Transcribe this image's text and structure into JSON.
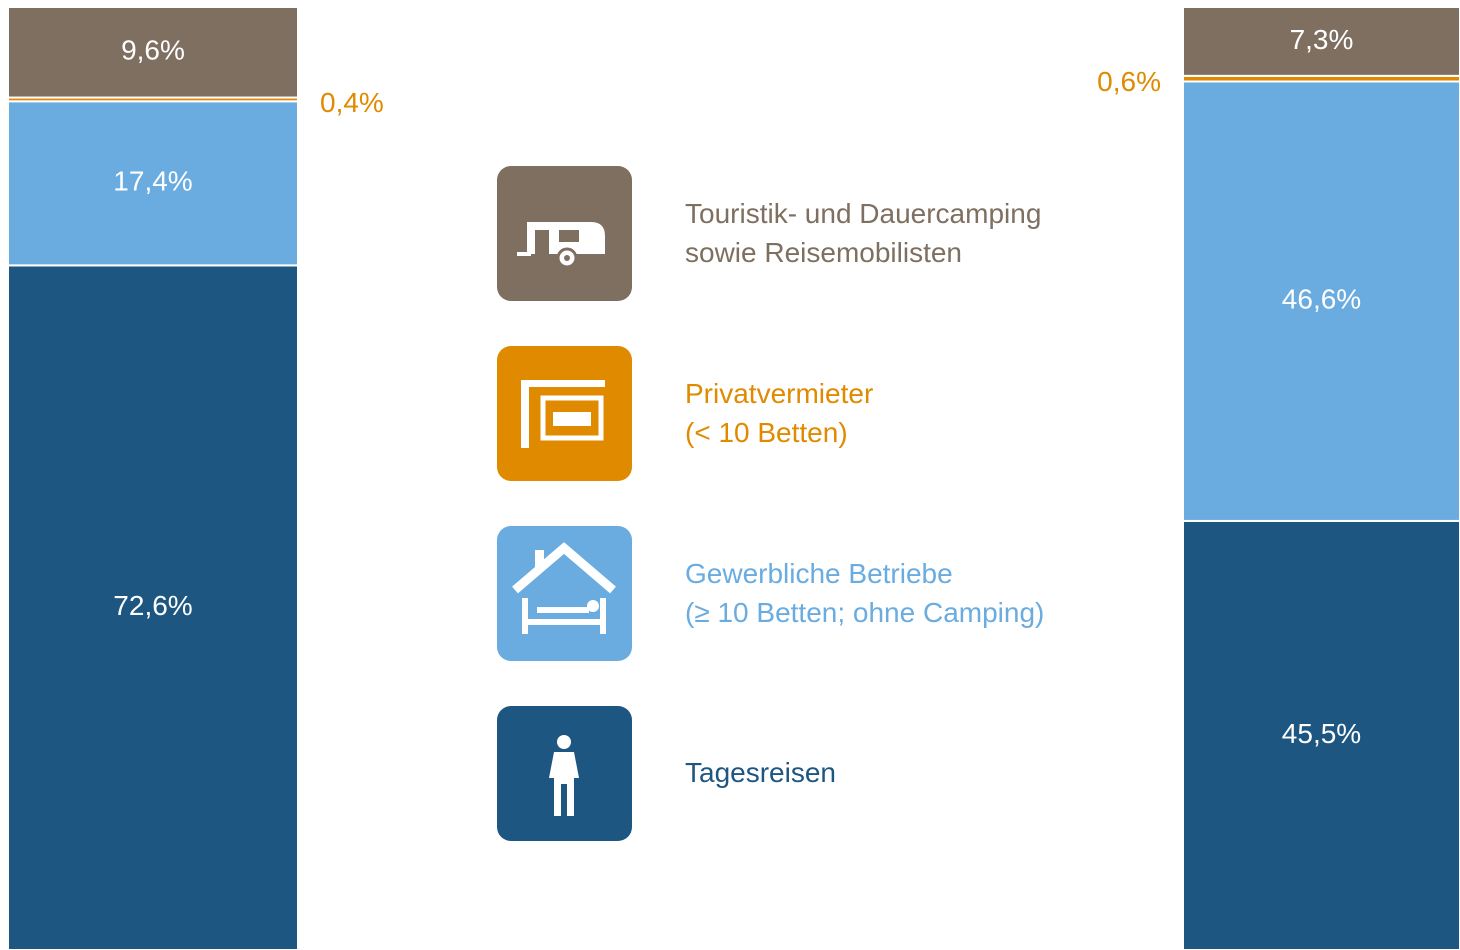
{
  "chart_data": {
    "type": "bar",
    "stacked": true,
    "categories": [
      null,
      null
    ],
    "ylim": [
      0,
      100
    ],
    "series": [
      {
        "name": "Tagesreisen",
        "color": "#1d5680",
        "values": [
          72.6,
          45.5
        ],
        "value_labels": [
          "72,6%",
          "45,5%"
        ]
      },
      {
        "name": "Gewerbliche Betriebe\n(≥ 10 Betten; ohne Camping)",
        "color": "#6aace0",
        "values": [
          17.4,
          46.6
        ],
        "value_labels": [
          "17,4%",
          "46,6%"
        ]
      },
      {
        "name": "Privatvermieter\n(< 10 Betten)",
        "color": "#e08a00",
        "values": [
          0.4,
          0.6
        ],
        "value_labels": [
          "0,4%",
          "0,6%"
        ]
      },
      {
        "name": "Touristik- und Dauercamping\nsowie Reisemobilisten",
        "color": "#7e6f60",
        "values": [
          9.6,
          7.3
        ],
        "value_labels": [
          "9,6%",
          "7,3%"
        ]
      }
    ]
  }
}
